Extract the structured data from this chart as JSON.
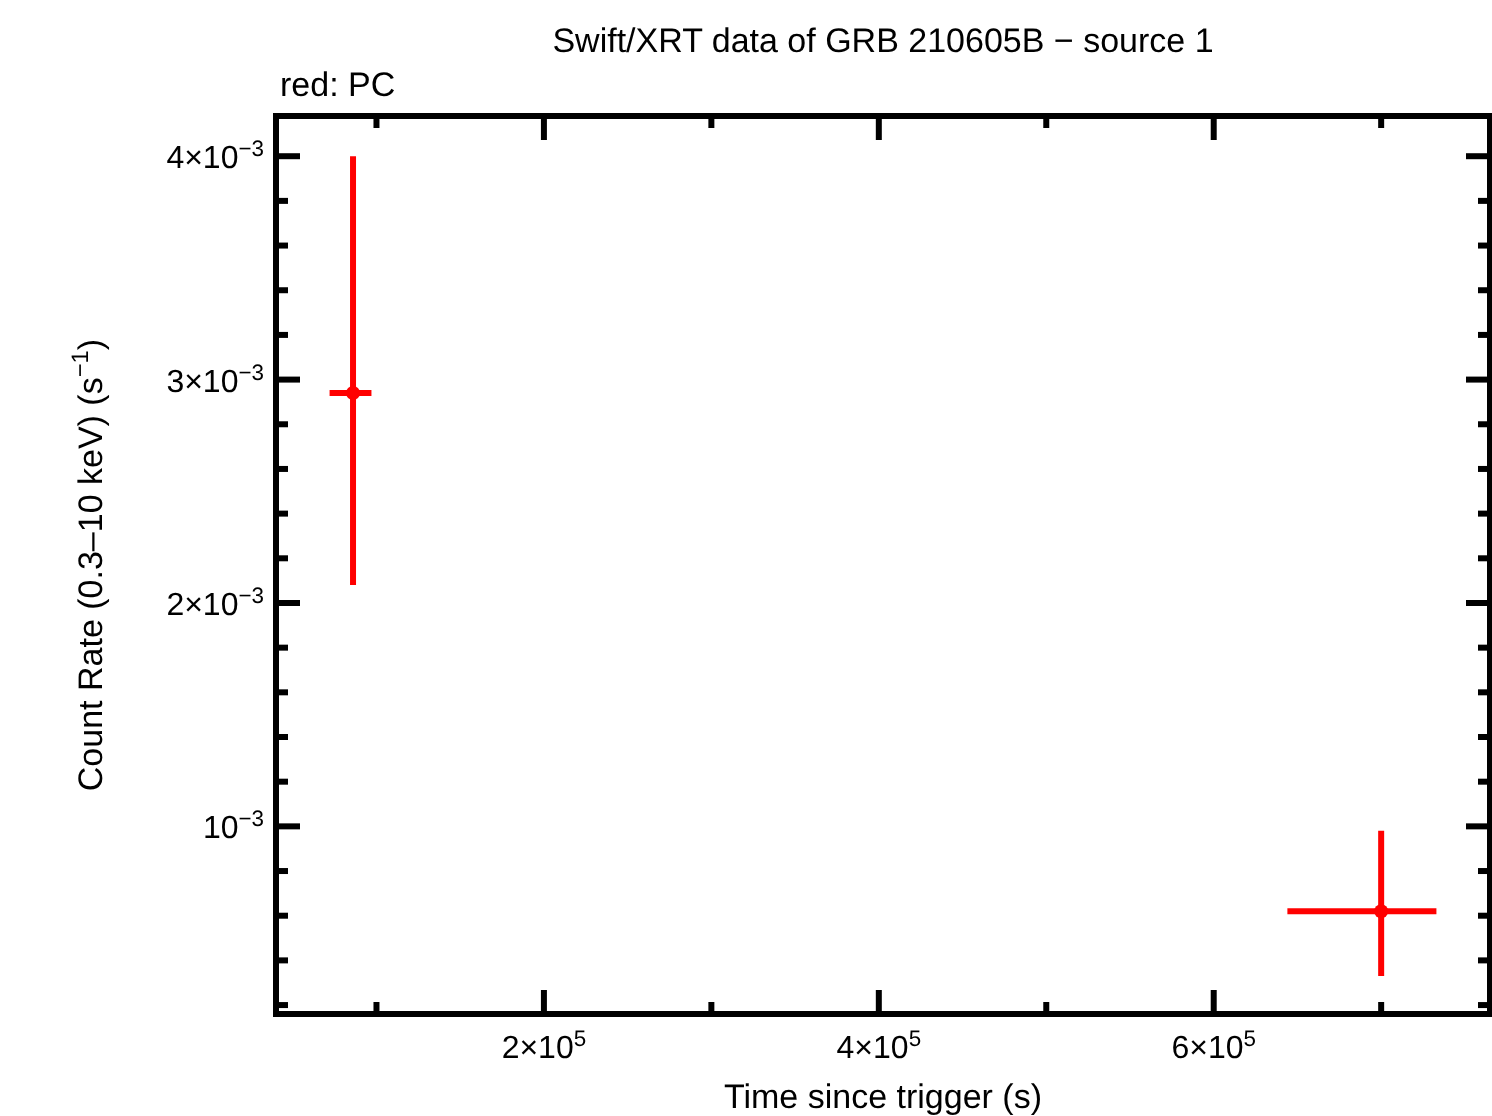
{
  "chart_data": {
    "type": "scatter",
    "title": "Swift/XRT data of GRB 210605B − source 1",
    "annotations": [
      "red: PC"
    ],
    "xlabel": "Time since trigger (s)",
    "ylabel": "Count Rate (0.3–10 keV) (s$^{−1}$)",
    "xlim": [
      40000,
      765000
    ],
    "ylim": [
      0.00016,
      0.00418
    ],
    "xticks": [
      {
        "value": 100000,
        "label": null
      },
      {
        "value": 200000,
        "label": "2×10$^{5}$"
      },
      {
        "value": 300000,
        "label": null
      },
      {
        "value": 400000,
        "label": "4×10$^{5}$"
      },
      {
        "value": 500000,
        "label": null
      },
      {
        "value": 600000,
        "label": "6×10$^{5}$"
      },
      {
        "value": 700000,
        "label": null
      }
    ],
    "yticks": [
      {
        "value": 0.0002,
        "label": null
      },
      {
        "value": 0.0004,
        "label": null
      },
      {
        "value": 0.0006,
        "label": null
      },
      {
        "value": 0.0008,
        "label": null
      },
      {
        "value": 0.001,
        "label": "10$^{−3}$"
      },
      {
        "value": 0.0012,
        "label": null
      },
      {
        "value": 0.0014,
        "label": null
      },
      {
        "value": 0.0016,
        "label": null
      },
      {
        "value": 0.0018,
        "label": null
      },
      {
        "value": 0.002,
        "label": "2×10$^{−3}$"
      },
      {
        "value": 0.0022,
        "label": null
      },
      {
        "value": 0.0024,
        "label": null
      },
      {
        "value": 0.0026,
        "label": null
      },
      {
        "value": 0.0028,
        "label": null
      },
      {
        "value": 0.003,
        "label": "3×10$^{−3}$"
      },
      {
        "value": 0.0032,
        "label": null
      },
      {
        "value": 0.0034,
        "label": null
      },
      {
        "value": 0.0036,
        "label": null
      },
      {
        "value": 0.0038,
        "label": null
      },
      {
        "value": 0.004,
        "label": "4×10$^{−3}$"
      }
    ],
    "grid": false,
    "series": [
      {
        "color": "#ff0000",
        "x": [
          86000,
          700000
        ],
        "values": [
          0.00294,
          0.00062
        ],
        "errors": [
          [
            0.00208,
            0.004
          ],
          [
            0.00033,
            0.00098
          ]
        ],
        "xerrors": [
          [
            72000,
            97000
          ],
          [
            644000,
            733000
          ]
        ]
      }
    ]
  }
}
